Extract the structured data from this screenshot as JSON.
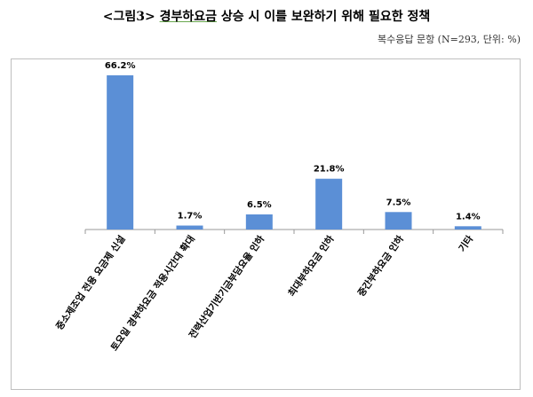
{
  "header": {
    "title_prefix": "<그림3> ",
    "title_keyword": "경부하요금",
    "title_suffix": " 상승 시 이를 보완하기 위해 필요한 정책",
    "note": "복수응답 문항 (N=293, 단위: %)"
  },
  "chart_data": {
    "type": "bar",
    "categories": [
      "중소제조업 전용 요금제 신설",
      "토요일 경부하요금 적용시간대 확대",
      "전력산업기반기금부담요율 인하",
      "최대부하요금 인하",
      "중간부하요금 인하",
      "기타"
    ],
    "values": [
      66.2,
      1.7,
      6.5,
      21.8,
      7.5,
      1.4
    ],
    "value_labels": [
      "66.2%",
      "1.7%",
      "6.5%",
      "21.8%",
      "7.5%",
      "1.4%"
    ],
    "ylim": [
      0,
      70
    ],
    "grid": false,
    "legend": false,
    "colors": {
      "bar": "#5b8fd6",
      "axis": "#999999"
    }
  }
}
